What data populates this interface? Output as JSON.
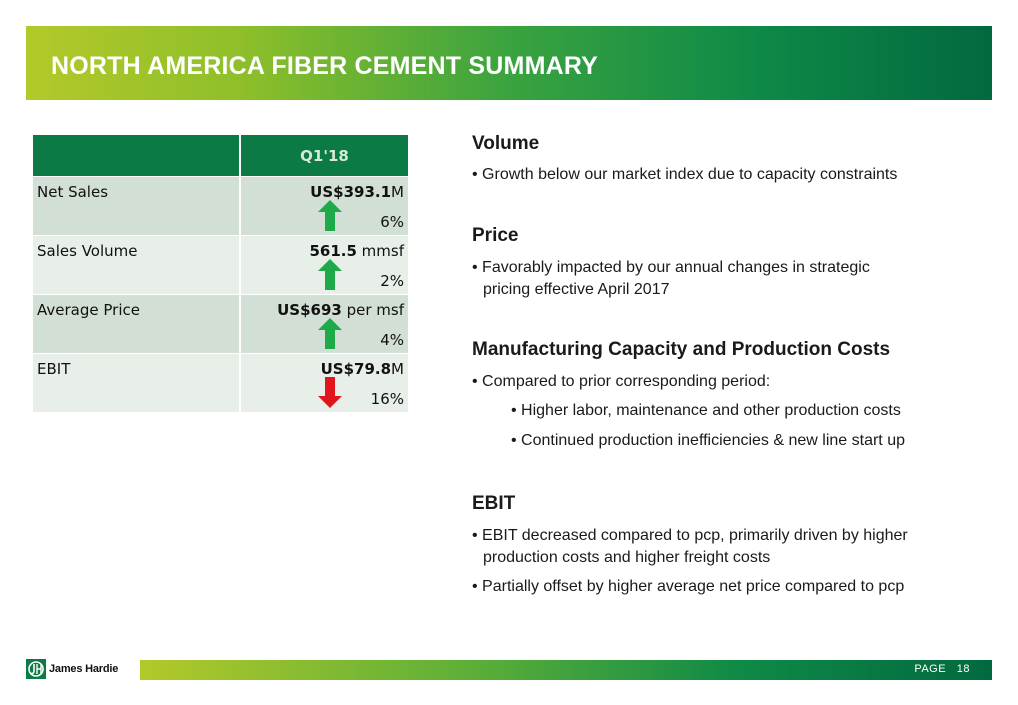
{
  "title": "NORTH AMERICA FIBER CEMENT SUMMARY",
  "table": {
    "column_header": "Q1'18",
    "rows": [
      {
        "label": "Net Sales",
        "value_bold": "US$393.1",
        "value_suffix": "M",
        "change": "6%",
        "direction": "up"
      },
      {
        "label": "Sales Volume",
        "value_bold": "561.5",
        "value_suffix": " mmsf",
        "change": "2%",
        "direction": "up"
      },
      {
        "label": "Average Price",
        "value_bold": "US$693",
        "value_suffix": " per msf",
        "change": "4%",
        "direction": "up"
      },
      {
        "label": "EBIT",
        "value_bold": "US$79.8",
        "value_suffix": "M",
        "change": "16%",
        "direction": "down"
      }
    ]
  },
  "sections": {
    "volume": {
      "heading": "Volume",
      "bullet1": "• Growth below our market index due to capacity constraints"
    },
    "price": {
      "heading": "Price",
      "bullet1_line1": "• Favorably impacted by our annual changes in strategic",
      "bullet1_line2": "pricing effective April 2017"
    },
    "manufacturing": {
      "heading": "Manufacturing Capacity and Production Costs",
      "bullet1": "• Compared to prior corresponding period:",
      "sub1": "• Higher labor, maintenance and other production costs",
      "sub2": "• Continued production inefficiencies & new line start up"
    },
    "ebit": {
      "heading": "EBIT",
      "bullet1_line1": "• EBIT decreased compared to pcp, primarily driven by higher",
      "bullet1_line2": "production costs and higher freight costs",
      "bullet2": "• Partially offset by higher average net price compared to pcp"
    }
  },
  "footer": {
    "brand": "James Hardie",
    "page_label": "PAGE",
    "page_number": "18"
  },
  "colors": {
    "up_arrow": "#1faa4a",
    "down_arrow": "#e0161c",
    "header_green": "#0b7a44"
  }
}
